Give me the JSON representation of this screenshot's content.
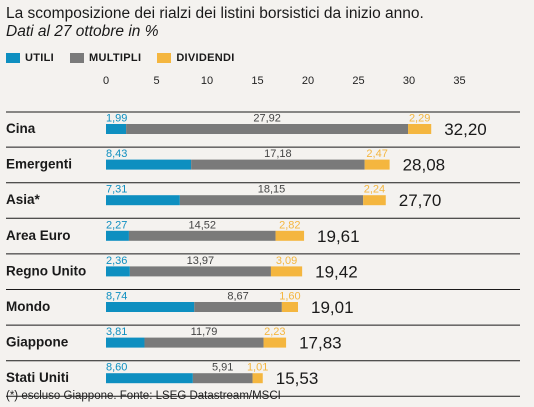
{
  "title": "La scomposizione dei rialzi dei listini borsistici da inizio anno.",
  "subtitle": "Dati al 27 ottobre in %",
  "source": "(*) escluso Giappone. Fonte: LSEG Datastream/MSCI",
  "colors": {
    "utili": "#0e8fc0",
    "multipli": "#7a7a7a",
    "dividendi": "#f4b63f",
    "background": "#f4f2ef",
    "text": "#1a1a1a"
  },
  "legend": [
    {
      "label": "UTILI",
      "color": "#0e8fc0"
    },
    {
      "label": "MULTIPLI",
      "color": "#7a7a7a"
    },
    {
      "label": "DIVIDENDI",
      "color": "#f4b63f"
    }
  ],
  "chart_data": {
    "type": "bar",
    "orientation": "horizontal",
    "stacked": true,
    "title": "La scomposizione dei rialzi dei listini borsistici da inizio anno.",
    "subtitle": "Dati al 27 ottobre in %",
    "xlim": [
      0,
      35
    ],
    "xticks": [
      "0",
      "5",
      "10",
      "15",
      "20",
      "25",
      "30",
      "35"
    ],
    "legend_position": "top-left",
    "categories": [
      "Cina",
      "Emergenti",
      "Asia*",
      "Area Euro",
      "Regno Unito",
      "Mondo",
      "Giappone",
      "Stati Uniti"
    ],
    "series": [
      {
        "name": "UTILI",
        "color": "#0e8fc0",
        "values": [
          1.99,
          8.43,
          7.31,
          2.27,
          2.36,
          8.74,
          3.81,
          8.6
        ],
        "labels": [
          "1,99",
          "8,43",
          "7,31",
          "2,27",
          "2,36",
          "8,74",
          "3,81",
          "8,60"
        ]
      },
      {
        "name": "MULTIPLI",
        "color": "#7a7a7a",
        "values": [
          27.92,
          17.18,
          18.15,
          14.52,
          13.97,
          8.67,
          11.79,
          5.91
        ],
        "labels": [
          "27,92",
          "17,18",
          "18,15",
          "14,52",
          "13,97",
          "8,67",
          "11,79",
          "5,91"
        ]
      },
      {
        "name": "DIVIDENDI",
        "color": "#f4b63f",
        "values": [
          2.29,
          2.47,
          2.24,
          2.82,
          3.09,
          1.6,
          2.23,
          1.01
        ],
        "labels": [
          "2,29",
          "2,47",
          "2,24",
          "2,82",
          "3,09",
          "1,60",
          "2,23",
          "1,01"
        ]
      }
    ],
    "totals": [
      32.2,
      28.08,
      27.7,
      19.61,
      19.42,
      19.01,
      17.83,
      15.53
    ],
    "total_labels": [
      "32,20",
      "28,08",
      "27,70",
      "19,61",
      "19,42",
      "19,01",
      "17,83",
      "15,53"
    ]
  }
}
